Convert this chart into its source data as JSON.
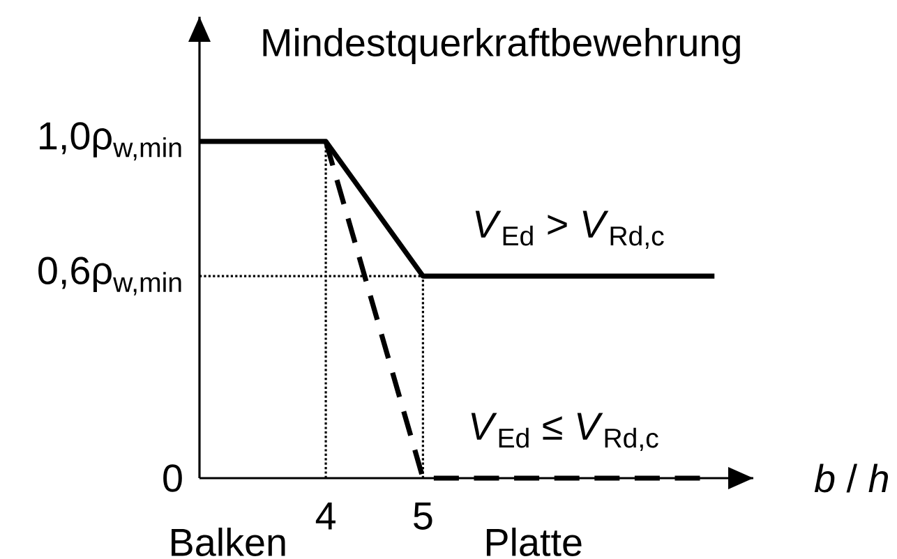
{
  "chart_data": {
    "type": "line",
    "xlabel": "*b* / *h*",
    "ylabel": "Mindestquerkraftbewehrung",
    "xlim": [
      2.7,
      8.4
    ],
    "xticks": [
      4,
      5
    ],
    "ylim": [
      0,
      1.37
    ],
    "yticks": [
      0,
      {
        "value": 0.6,
        "label": "0,6ρ$_{w,min}$"
      },
      {
        "value": 1,
        "label": "1,0ρ$_{w,min}$"
      }
    ],
    "marker": "none",
    "series": [
      {
        "name": "*V*$_{Ed}$ > *V*$_{Rd,c}$",
        "color": "#000000",
        "line_style": "solid",
        "x": [
          2.7,
          4,
          5,
          8
        ],
        "values": [
          1,
          1,
          0.6,
          0.6
        ]
      },
      {
        "name": "*V*$_{Ed}$ ≤ *V*$_{Rd,c}$",
        "color": "#000000",
        "line_style": "dashed",
        "x": [
          4,
          5,
          7.9
        ],
        "values": [
          1,
          0,
          0
        ]
      }
    ],
    "ref_lines": [
      {
        "axis": "x",
        "value": 4,
        "line_style": "dotted",
        "color": "#000000"
      },
      {
        "axis": "x",
        "value": 5,
        "line_style": "dotted",
        "color": "#000000"
      },
      {
        "axis": "y",
        "value": 0.6,
        "line_style": "dotted",
        "color": "#000000"
      }
    ],
    "annotations": [
      "Balken",
      "Platte"
    ]
  }
}
